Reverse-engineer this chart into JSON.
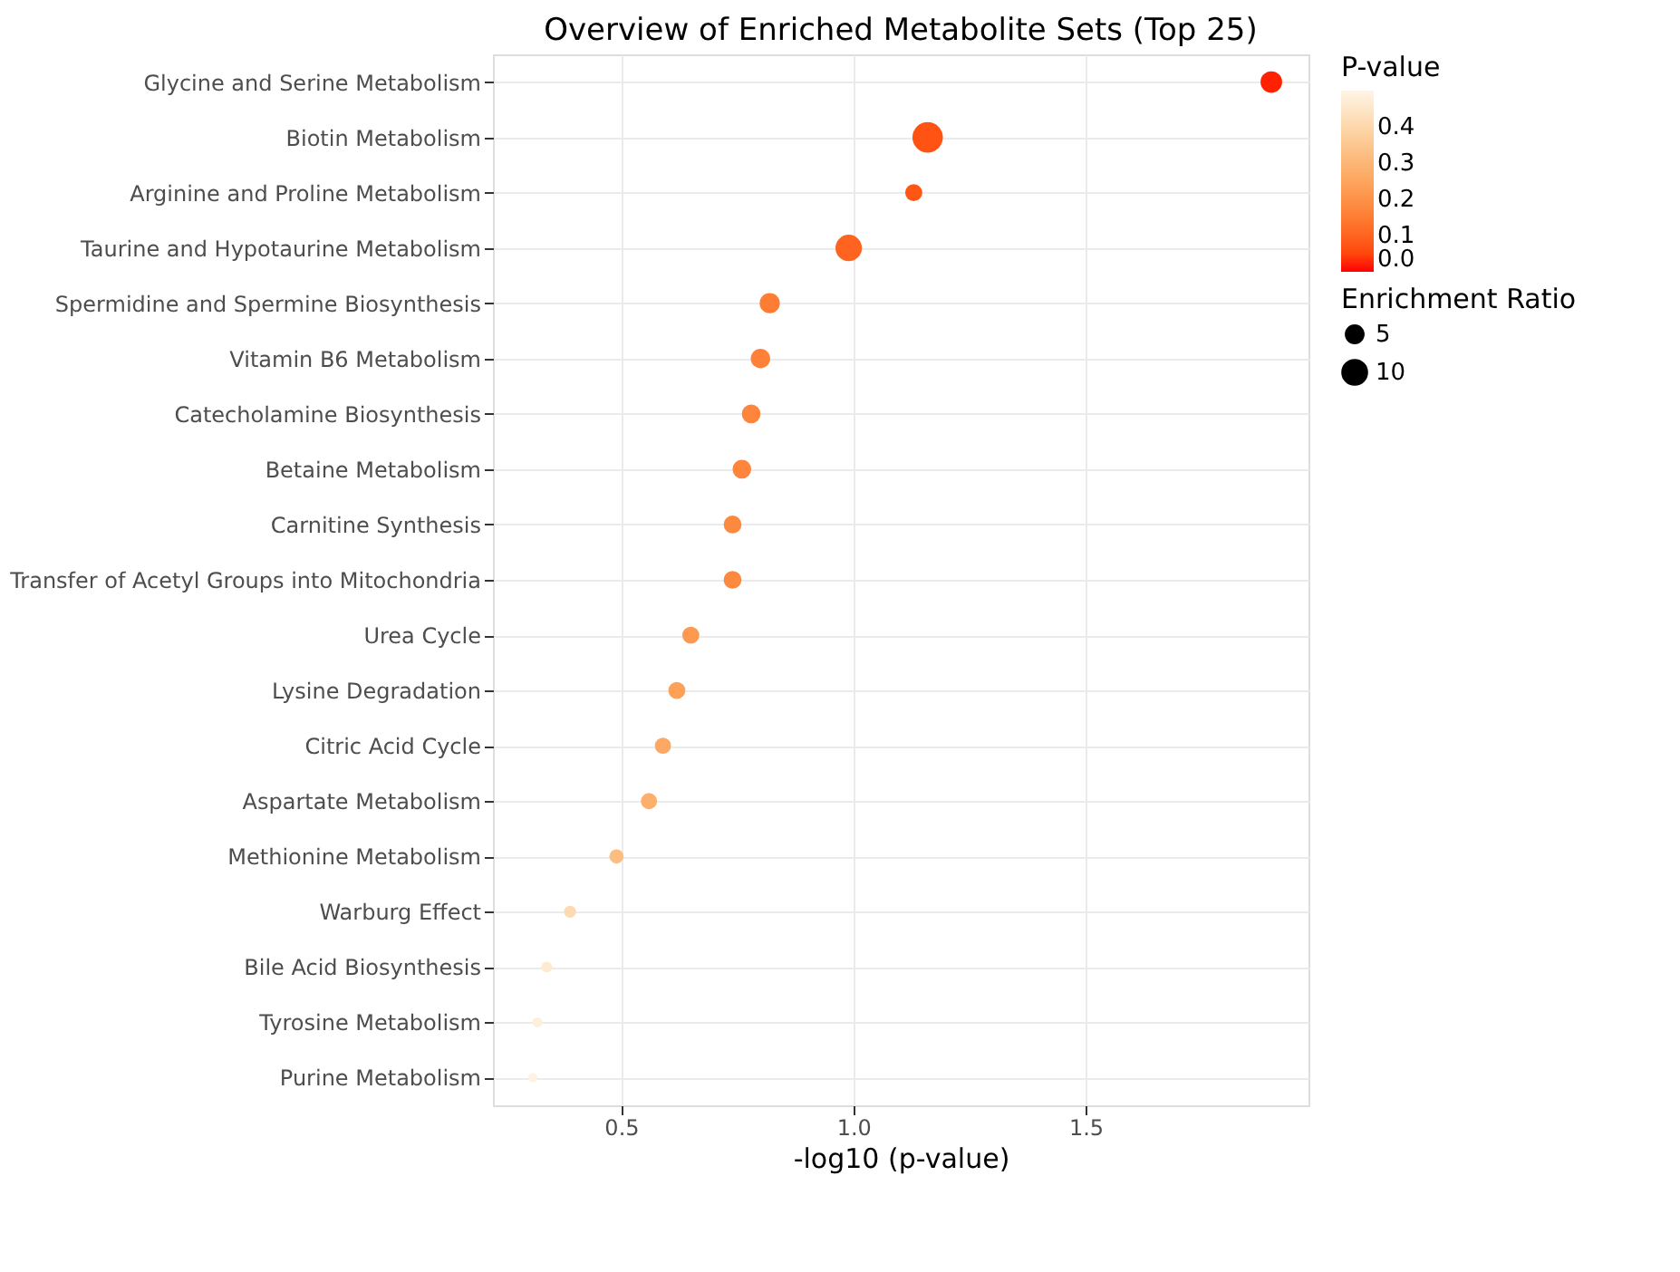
{
  "chart_data": {
    "type": "bubble",
    "title": "Overview of Enriched Metabolite Sets (Top 25)",
    "orientation": "horizontal",
    "xlabel": "-log10 (p-value)",
    "legend_title": "Enrichment Ratio",
    "clabel": "P-value",
    "categories": [
      "Glycine and Serine Metabolism",
      "Biotin Metabolism",
      "Arginine and Proline Metabolism",
      "Taurine and Hypotaurine Metabolism",
      "Spermidine and Spermine Biosynthesis",
      "Vitamin B6 Metabolism",
      "Catecholamine Biosynthesis",
      "Betaine Metabolism",
      "Carnitine Synthesis",
      "Transfer of Acetyl Groups into Mitochondria",
      "Urea Cycle",
      "Lysine Degradation",
      "Citric Acid Cycle",
      "Aspartate Metabolism",
      "Methionine Metabolism",
      "Warburg Effect",
      "Bile Acid Biosynthesis",
      "Tyrosine Metabolism",
      "Purine Metabolism"
    ],
    "values": [
      1.9,
      1.16,
      1.13,
      0.99,
      0.82,
      0.8,
      0.78,
      0.76,
      0.74,
      0.74,
      0.65,
      0.62,
      0.59,
      0.56,
      0.49,
      0.39,
      0.34,
      0.32,
      0.31
    ],
    "sizes": [
      8,
      16,
      5,
      12,
      7,
      6.5,
      6,
      6,
      5.5,
      5.5,
      5,
      5,
      4.5,
      4.5,
      3.5,
      2.5,
      2,
      1.7,
      1.5
    ],
    "size_legend": [
      5,
      10
    ],
    "cvalues": [
      0.013,
      0.07,
      0.075,
      0.1,
      0.15,
      0.16,
      0.17,
      0.17,
      0.18,
      0.18,
      0.22,
      0.24,
      0.26,
      0.28,
      0.32,
      0.41,
      0.46,
      0.48,
      0.49
    ],
    "clim": [
      0,
      0.5
    ],
    "cticks": [
      {
        "value": 0,
        "label": "0.0"
      },
      0.1,
      0.2,
      0.3,
      0.4
    ],
    "xlim": [
      0.224,
      1.98
    ],
    "xticks": [
      0.5,
      {
        "value": 1,
        "label": "1.0"
      },
      1.5
    ],
    "grid": true
  }
}
